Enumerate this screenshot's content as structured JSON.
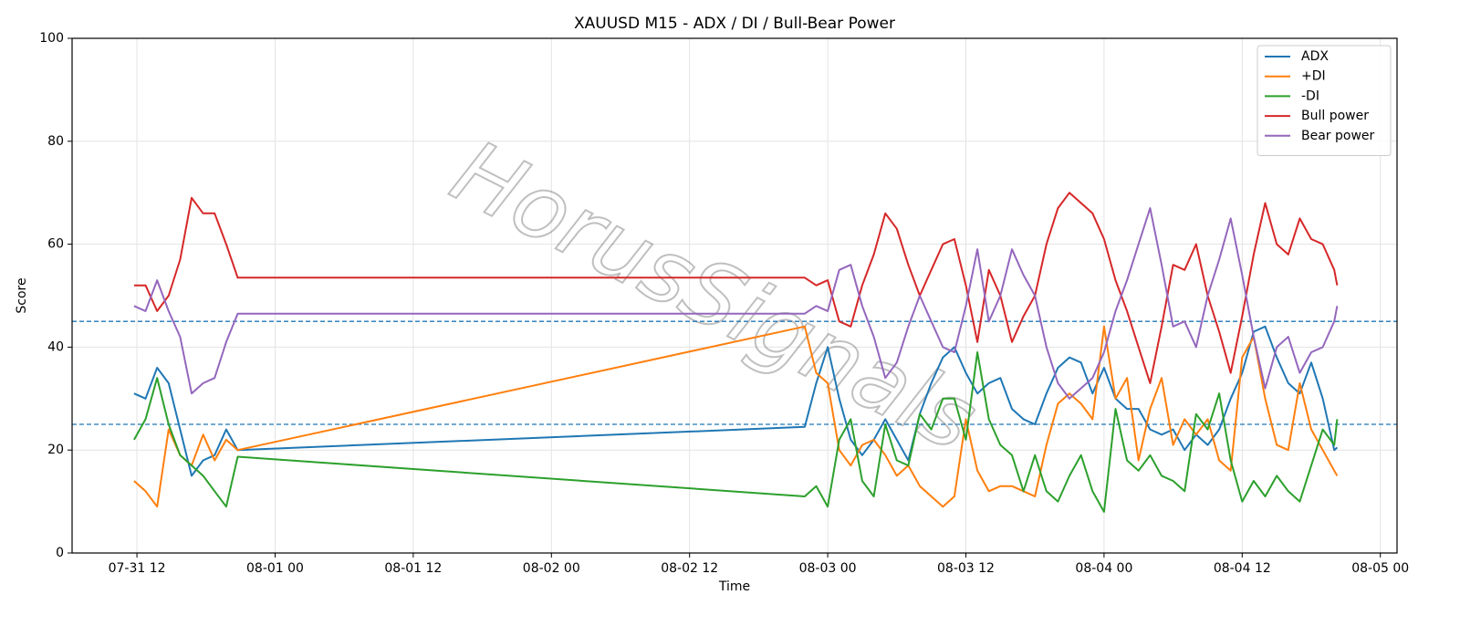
{
  "chart_data": {
    "type": "line",
    "title": "XAUUSD M15 - ADX / DI / Bull-Bear Power",
    "x_label": "Time",
    "y_label": "Score",
    "watermark": "HorusSignals",
    "x": [
      "07-31 11:45",
      "07-31 12:45",
      "07-31 13:45",
      "07-31 14:45",
      "07-31 15:45",
      "07-31 16:45",
      "07-31 17:45",
      "07-31 18:45",
      "07-31 19:45",
      "07-31 20:45",
      "08-02 22:00",
      "08-02 23:00",
      "08-03 00:00",
      "08-03 01:00",
      "08-03 02:00",
      "08-03 03:00",
      "08-03 04:00",
      "08-03 05:00",
      "08-03 06:00",
      "08-03 07:00",
      "08-03 08:00",
      "08-03 09:00",
      "08-03 10:00",
      "08-03 11:00",
      "08-03 12:00",
      "08-03 13:00",
      "08-03 14:00",
      "08-03 15:00",
      "08-03 16:00",
      "08-03 17:00",
      "08-03 18:00",
      "08-03 19:00",
      "08-03 20:00",
      "08-03 21:00",
      "08-03 22:00",
      "08-03 23:00",
      "08-04 00:00",
      "08-04 01:00",
      "08-04 02:00",
      "08-04 03:00",
      "08-04 04:00",
      "08-04 05:00",
      "08-04 06:00",
      "08-04 07:00",
      "08-04 08:00",
      "08-04 09:00",
      "08-04 10:00",
      "08-04 11:00",
      "08-04 12:00",
      "08-04 13:00",
      "08-04 14:00",
      "08-04 15:00",
      "08-04 16:00",
      "08-04 17:00",
      "08-04 18:00",
      "08-04 19:00",
      "08-04 20:00",
      "08-04 20:15"
    ],
    "series": [
      {
        "name": "ADX",
        "color": "#1f77b4",
        "values": [
          31,
          30,
          36,
          33,
          24,
          15,
          18,
          19,
          24,
          20,
          24.5,
          33,
          40,
          30,
          22,
          19,
          22,
          26,
          22,
          18,
          27,
          33,
          38,
          40,
          35,
          31,
          33,
          34,
          28,
          26,
          25,
          31,
          36,
          38,
          37,
          31,
          36,
          30,
          28,
          28,
          24,
          23,
          24,
          20,
          23,
          21,
          24,
          30,
          35,
          43,
          44,
          38,
          33,
          31,
          37,
          30,
          20,
          20.5
        ]
      },
      {
        "name": "+DI",
        "color": "#ff7f0e",
        "values": [
          14,
          12,
          9,
          24,
          19,
          17,
          23,
          18,
          22,
          20,
          44,
          35,
          33,
          20,
          17,
          21,
          22,
          19,
          15,
          17,
          13,
          11,
          9,
          11,
          26,
          16,
          12,
          13,
          13,
          12,
          11,
          21,
          29,
          31,
          29,
          26,
          44,
          30,
          34,
          18,
          28,
          34,
          21,
          26,
          23,
          26,
          18,
          16,
          38,
          42,
          30,
          21,
          20,
          33,
          24,
          20,
          16,
          15
        ]
      },
      {
        "name": "-DI",
        "color": "#2ca02c",
        "values": [
          22,
          26,
          34,
          25,
          19,
          17,
          15,
          12,
          9,
          18.7,
          11,
          13,
          9,
          22,
          26,
          14,
          11,
          25,
          18,
          17,
          27,
          24,
          30,
          30,
          22,
          39,
          26,
          21,
          19,
          12,
          19,
          12,
          10,
          15,
          19,
          12,
          8,
          28,
          18,
          16,
          19,
          15,
          14,
          12,
          27,
          24,
          31,
          18,
          10,
          14,
          11,
          15,
          12,
          10,
          17,
          24,
          21,
          26
        ]
      },
      {
        "name": "Bull power",
        "color": "#d62728",
        "values": [
          52,
          52,
          47,
          50,
          57,
          69,
          66,
          66,
          60,
          53.5,
          53.5,
          52,
          53,
          45,
          44,
          52,
          58,
          66,
          63,
          56,
          50,
          55,
          60,
          61,
          52,
          41,
          55,
          50,
          41,
          46,
          50,
          60,
          67,
          70,
          68,
          66,
          61,
          53,
          47,
          40,
          33,
          44,
          56,
          55,
          60,
          50,
          43,
          35,
          46,
          58,
          68,
          60,
          58,
          65,
          61,
          60,
          55,
          52
        ]
      },
      {
        "name": "Bear power",
        "color": "#9467bd",
        "values": [
          48,
          47,
          53,
          47,
          42,
          31,
          33,
          34,
          41,
          46.5,
          46.5,
          48,
          47,
          55,
          56,
          48,
          42,
          34,
          37,
          44,
          50,
          45,
          40,
          39,
          48,
          59,
          45,
          50,
          59,
          54,
          50,
          40,
          33,
          30,
          32,
          34,
          39,
          47,
          53,
          60,
          67,
          56,
          44,
          45,
          40,
          50,
          57,
          65,
          54,
          42,
          32,
          40,
          42,
          35,
          39,
          40,
          45,
          48
        ]
      }
    ],
    "hlines": [
      45,
      25
    ],
    "hline_color": "#1f77b4",
    "xlim": [
      "07-31 06:22",
      "08-05 01:27"
    ],
    "xticks": [
      "07-31 12",
      "08-01 00",
      "08-01 12",
      "08-02 00",
      "08-02 12",
      "08-03 00",
      "08-03 12",
      "08-04 00",
      "08-04 12",
      "08-05 00"
    ],
    "ylim": [
      0,
      100
    ],
    "yticks": [
      0,
      20,
      40,
      60,
      80,
      100
    ],
    "grid": true,
    "legend": "upper right"
  }
}
